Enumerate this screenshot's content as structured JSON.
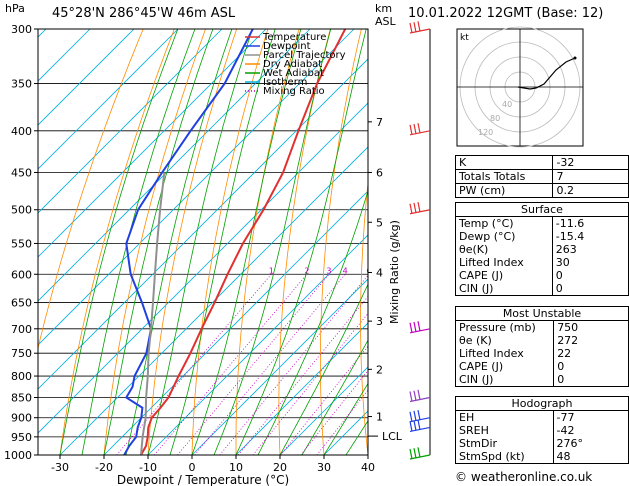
{
  "header": {
    "hpa_label": "hPa",
    "location": "45°28'N  286°45'W  46m  ASL",
    "km_label_1": "km",
    "km_label_2": "ASL",
    "datetime": "10.01.2022  12GMT  (Base: 12)"
  },
  "credit": "© weatheronline.co.uk",
  "colors": {
    "temperature": "#e03030",
    "dewpoint": "#2040e0",
    "parcel": "#909090",
    "dry_adiabat": "#ff8c00",
    "wet_adiabat": "#00a000",
    "isotherm": "#00b0e0",
    "mixing_ratio": "#c000c0"
  },
  "legend": [
    {
      "label": "Temperature",
      "color": "#e03030",
      "style": "solid"
    },
    {
      "label": "Dewpoint",
      "color": "#2040e0",
      "style": "solid"
    },
    {
      "label": "Parcel Trajectory",
      "color": "#909090",
      "style": "solid"
    },
    {
      "label": "Dry Adiabat",
      "color": "#ff8c00",
      "style": "solid"
    },
    {
      "label": "Wet Adiabat",
      "color": "#00a000",
      "style": "solid"
    },
    {
      "label": "Isotherm",
      "color": "#00b0e0",
      "style": "solid"
    },
    {
      "label": "Mixing Ratio",
      "color": "#c000c0",
      "style": "dotted"
    }
  ],
  "chart_data": {
    "type": "line",
    "xlabel": "Dewpoint / Temperature (°C)",
    "ylabel": "Mixing Ratio (g/kg)",
    "xlim": [
      -35,
      40
    ],
    "ylim": [
      1000,
      300
    ],
    "yscale": "log",
    "skew": true,
    "x_ticks": [
      -30,
      -20,
      -10,
      0,
      10,
      20,
      30,
      40
    ],
    "pressure_ticks": [
      300,
      350,
      400,
      450,
      500,
      550,
      600,
      650,
      700,
      750,
      800,
      850,
      900,
      950,
      1000
    ],
    "km_ticks": [
      {
        "label": "1",
        "p": 897
      },
      {
        "label": "2",
        "p": 785
      },
      {
        "label": "3",
        "p": 685
      },
      {
        "label": "4",
        "p": 597
      },
      {
        "label": "5",
        "p": 518
      },
      {
        "label": "6",
        "p": 450
      },
      {
        "label": "7",
        "p": 390
      }
    ],
    "lcl": {
      "label": "LCL",
      "p": 948
    },
    "mixing_ratio_labels": [
      "1",
      "2",
      "3",
      "4",
      "6",
      "8",
      "10",
      "15",
      "20",
      "25"
    ],
    "mixing_ratio_values": [
      1,
      2,
      3,
      4,
      6,
      8,
      10,
      15,
      20,
      25
    ],
    "series": [
      {
        "name": "Temperature",
        "color": "#e03030",
        "points": [
          [
            1000,
            -11.6
          ],
          [
            975,
            -12.5
          ],
          [
            950,
            -14.2
          ],
          [
            925,
            -16.2
          ],
          [
            900,
            -17.6
          ],
          [
            875,
            -17.9
          ],
          [
            850,
            -18.4
          ],
          [
            800,
            -21
          ],
          [
            750,
            -23.5
          ],
          [
            700,
            -26.5
          ],
          [
            650,
            -29.5
          ],
          [
            600,
            -33
          ],
          [
            550,
            -36.5
          ],
          [
            500,
            -39.5
          ],
          [
            450,
            -43.5
          ],
          [
            400,
            -49.5
          ],
          [
            350,
            -56
          ],
          [
            300,
            -62
          ]
        ]
      },
      {
        "name": "Dewpoint",
        "color": "#2040e0",
        "points": [
          [
            1000,
            -15.4
          ],
          [
            975,
            -16.3
          ],
          [
            950,
            -16.8
          ],
          [
            925,
            -18.6
          ],
          [
            900,
            -20
          ],
          [
            875,
            -22
          ],
          [
            850,
            -28
          ],
          [
            825,
            -29
          ],
          [
            800,
            -31
          ],
          [
            750,
            -33.5
          ],
          [
            700,
            -38
          ],
          [
            650,
            -46
          ],
          [
            600,
            -55
          ],
          [
            550,
            -63
          ],
          [
            500,
            -68
          ],
          [
            450,
            -71
          ],
          [
            400,
            -74
          ],
          [
            350,
            -77
          ],
          [
            300,
            -83
          ]
        ]
      },
      {
        "name": "Parcel Trajectory",
        "color": "#909090",
        "points": [
          [
            1000,
            -11.6
          ],
          [
            948,
            -15.5
          ],
          [
            900,
            -19
          ],
          [
            850,
            -23.5
          ],
          [
            800,
            -28
          ],
          [
            750,
            -33
          ],
          [
            700,
            -38
          ],
          [
            650,
            -43.5
          ],
          [
            600,
            -49.5
          ],
          [
            550,
            -56
          ],
          [
            500,
            -63
          ],
          [
            450,
            -70.5
          ]
        ]
      }
    ]
  },
  "hodograph": {
    "label": "kt",
    "rings": [
      "40",
      "80",
      "120"
    ]
  },
  "indices": {
    "k_label": "K",
    "k_value": "-32",
    "tt_label": "Totals Totals",
    "tt_value": "7",
    "pw_label": "PW (cm)",
    "pw_value": "0.2"
  },
  "surface": {
    "title": "Surface",
    "rows": [
      {
        "label": "Temp (°C)",
        "value": "-11.6"
      },
      {
        "label": "Dewp (°C)",
        "value": "-15.4"
      },
      {
        "label": "θe(K)",
        "value": "263"
      },
      {
        "label": "Lifted Index",
        "value": "30"
      },
      {
        "label": "CAPE (J)",
        "value": "0"
      },
      {
        "label": "CIN (J)",
        "value": "0"
      }
    ]
  },
  "most_unstable": {
    "title": "Most Unstable",
    "rows": [
      {
        "label": "Pressure (mb)",
        "value": "750"
      },
      {
        "label": "θe (K)",
        "value": "272"
      },
      {
        "label": "Lifted Index",
        "value": "22"
      },
      {
        "label": "CAPE (J)",
        "value": "0"
      },
      {
        "label": "CIN (J)",
        "value": "0"
      }
    ]
  },
  "hodograph_table": {
    "title": "Hodograph",
    "rows": [
      {
        "label": "EH",
        "value": "-77"
      },
      {
        "label": "SREH",
        "value": "-42"
      },
      {
        "label": "StmDir",
        "value": "276°"
      },
      {
        "label": "StmSpd (kt)",
        "value": "48"
      }
    ]
  }
}
